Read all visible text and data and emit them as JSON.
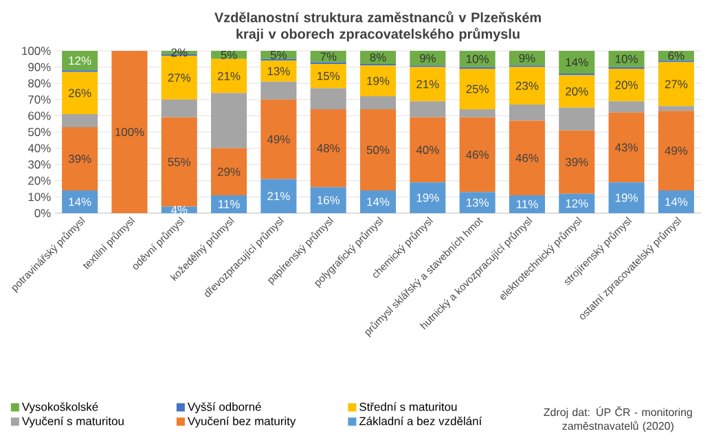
{
  "chart_data": {
    "type": "bar",
    "stacked": true,
    "title": "Vzdělanostní struktura  zaměstnanců v Plzeňském kraji v oborech zpracovatelského průmyslu",
    "categories": [
      "potravinářský průmysl",
      "textilní průmysl",
      "oděvní průmysl",
      "kožedělný průmysl",
      "dřevozpracující průmysl",
      "papírenský průmysl",
      "polygrafický průmysl",
      "chemický průmysl",
      "průmysl sklářský a stavebních hmot",
      "hutnický a kovozpracující průmysl",
      "elektrotechnický průmysl",
      "strojírenský průmysl",
      "ostatní zpracovatelský průmysl"
    ],
    "series": [
      {
        "name": "Základní a bez vzdělání",
        "color": "#5b9bd5",
        "values": [
          14,
          0,
          4,
          11,
          21,
          16,
          14,
          19,
          13,
          11,
          12,
          19,
          14
        ],
        "value_labels": [
          "14%",
          null,
          "4%",
          "11%",
          "21%",
          "16%",
          "14%",
          "19%",
          "13%",
          "11%",
          "12%",
          "19%",
          "14%"
        ]
      },
      {
        "name": "Vyučení bez maturity",
        "color": "#ed7d31",
        "values": [
          39,
          100,
          55,
          29,
          49,
          48,
          50,
          40,
          46,
          46,
          39,
          43,
          49
        ],
        "value_labels": [
          "39%",
          "100%",
          "55%",
          "29%",
          "49%",
          "48%",
          "50%",
          "40%",
          "46%",
          "46%",
          "39%",
          "43%",
          "49%"
        ]
      },
      {
        "name": "Vyučení s maturitou",
        "color": "#a5a5a5",
        "values": [
          8,
          0,
          11,
          34,
          11,
          13,
          8,
          10,
          5,
          10,
          14,
          7,
          3
        ]
      },
      {
        "name": "Střední s maturitou",
        "color": "#ffc000",
        "values": [
          26,
          0,
          27,
          21,
          13,
          15,
          19,
          21,
          25,
          23,
          20,
          20,
          27
        ],
        "value_labels": [
          "26%",
          null,
          "27%",
          "21%",
          "13%",
          "15%",
          "19%",
          "21%",
          "25%",
          "23%",
          "20%",
          "20%",
          "27%"
        ]
      },
      {
        "name": "Vyšší odborné",
        "color": "#4472c4",
        "values": [
          1,
          0,
          1,
          0,
          1,
          1,
          1,
          1,
          1,
          1,
          1,
          1,
          1
        ]
      },
      {
        "name": "Vysokoškolské",
        "color": "#70ad47",
        "values": [
          12,
          0,
          2,
          5,
          5,
          7,
          8,
          9,
          10,
          9,
          14,
          10,
          6
        ],
        "value_labels": [
          "12%",
          null,
          "2%",
          "5%",
          "5%",
          "7%",
          "8%",
          "9%",
          "10%",
          "9%",
          "14%",
          "10%",
          "6%"
        ]
      }
    ],
    "ylim": [
      0,
      100
    ],
    "yticks": [
      {
        "value": 0,
        "label": "0%"
      },
      {
        "value": 10,
        "label": "10%"
      },
      {
        "value": 20,
        "label": "20%"
      },
      {
        "value": 30,
        "label": "30%"
      },
      {
        "value": 40,
        "label": "40%"
      },
      {
        "value": 50,
        "label": "50%"
      },
      {
        "value": 60,
        "label": "60%"
      },
      {
        "value": 70,
        "label": "70%"
      },
      {
        "value": 80,
        "label": "80%"
      },
      {
        "value": 90,
        "label": "90%"
      },
      {
        "value": 100,
        "label": "100%"
      }
    ],
    "grid": "y",
    "legend": "bottom",
    "annotations": [
      "Zdroj dat: ÚP ČR - monitoring zaměstnavatelů (2020)"
    ]
  }
}
